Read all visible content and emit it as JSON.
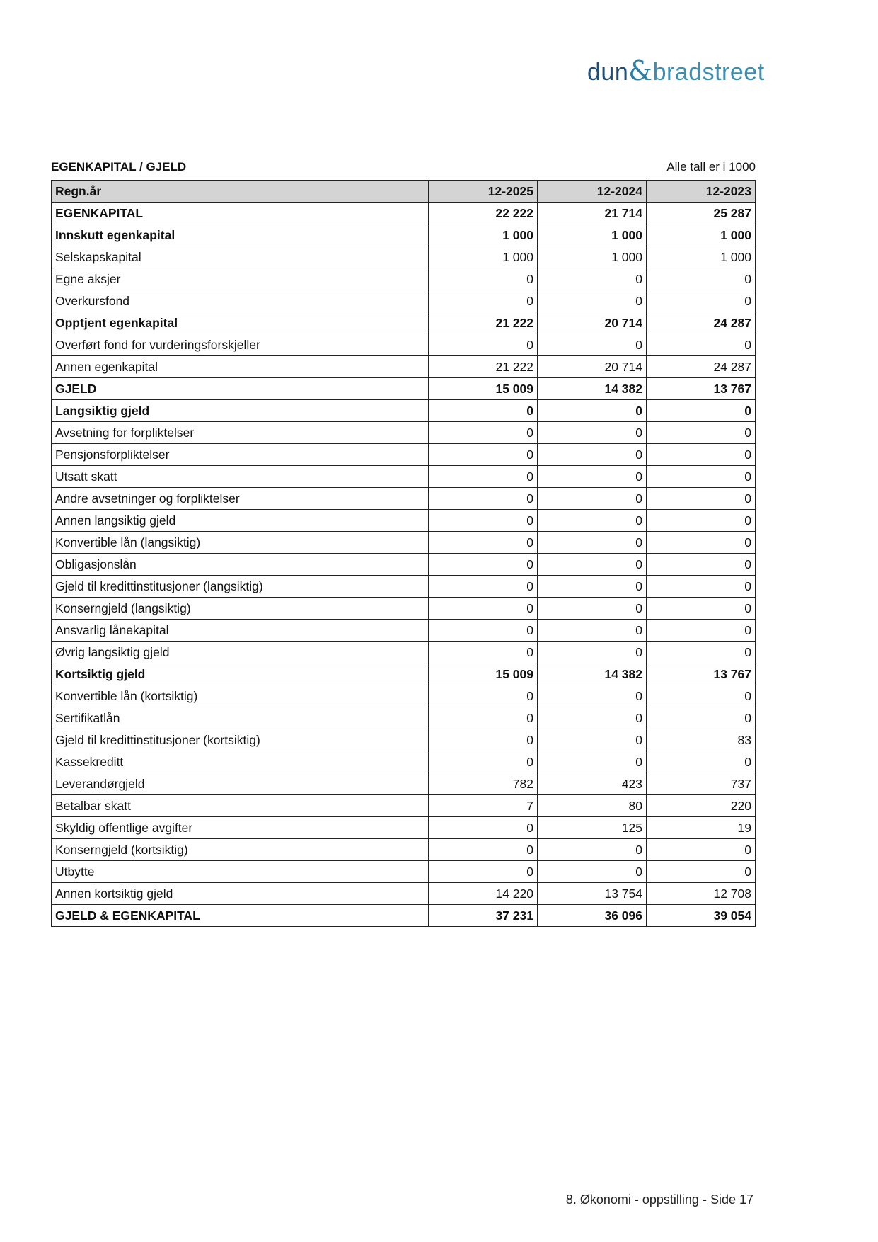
{
  "logo": {
    "left": "dun",
    "amp": "&",
    "right": "bradstreet"
  },
  "section_title": "EGENKAPITAL / GJELD",
  "unit_note": "Alle tall er i 1000",
  "table": {
    "headers": [
      "Regn.år",
      "12-2025",
      "12-2024",
      "12-2023"
    ],
    "rows": [
      {
        "label": "EGENKAPITAL",
        "bold": true,
        "values": [
          "22 222",
          "21 714",
          "25 287"
        ]
      },
      {
        "label": "Innskutt egenkapital",
        "bold": true,
        "values": [
          "1 000",
          "1 000",
          "1 000"
        ]
      },
      {
        "label": "Selskapskapital",
        "bold": false,
        "values": [
          "1 000",
          "1 000",
          "1 000"
        ]
      },
      {
        "label": "Egne aksjer",
        "bold": false,
        "values": [
          "0",
          "0",
          "0"
        ]
      },
      {
        "label": "Overkursfond",
        "bold": false,
        "values": [
          "0",
          "0",
          "0"
        ]
      },
      {
        "label": "Opptjent egenkapital",
        "bold": true,
        "values": [
          "21 222",
          "20 714",
          "24 287"
        ]
      },
      {
        "label": "Overført fond for vurderingsforskjeller",
        "bold": false,
        "values": [
          "0",
          "0",
          "0"
        ]
      },
      {
        "label": "Annen egenkapital",
        "bold": false,
        "values": [
          "21 222",
          "20 714",
          "24 287"
        ]
      },
      {
        "label": "GJELD",
        "bold": true,
        "values": [
          "15 009",
          "14 382",
          "13 767"
        ]
      },
      {
        "label": "Langsiktig gjeld",
        "bold": true,
        "values": [
          "0",
          "0",
          "0"
        ]
      },
      {
        "label": "Avsetning for forpliktelser",
        "bold": false,
        "values": [
          "0",
          "0",
          "0"
        ]
      },
      {
        "label": "Pensjonsforpliktelser",
        "bold": false,
        "values": [
          "0",
          "0",
          "0"
        ]
      },
      {
        "label": "Utsatt skatt",
        "bold": false,
        "values": [
          "0",
          "0",
          "0"
        ]
      },
      {
        "label": "Andre avsetninger og forpliktelser",
        "bold": false,
        "values": [
          "0",
          "0",
          "0"
        ]
      },
      {
        "label": "Annen langsiktig gjeld",
        "bold": false,
        "values": [
          "0",
          "0",
          "0"
        ]
      },
      {
        "label": "Konvertible lån (langsiktig)",
        "bold": false,
        "values": [
          "0",
          "0",
          "0"
        ]
      },
      {
        "label": "Obligasjonslån",
        "bold": false,
        "values": [
          "0",
          "0",
          "0"
        ]
      },
      {
        "label": "Gjeld til kredittinstitusjoner (langsiktig)",
        "bold": false,
        "values": [
          "0",
          "0",
          "0"
        ]
      },
      {
        "label": "Konserngjeld (langsiktig)",
        "bold": false,
        "values": [
          "0",
          "0",
          "0"
        ]
      },
      {
        "label": "Ansvarlig lånekapital",
        "bold": false,
        "values": [
          "0",
          "0",
          "0"
        ]
      },
      {
        "label": "Øvrig langsiktig gjeld",
        "bold": false,
        "values": [
          "0",
          "0",
          "0"
        ]
      },
      {
        "label": "Kortsiktig gjeld",
        "bold": true,
        "values": [
          "15 009",
          "14 382",
          "13 767"
        ]
      },
      {
        "label": "Konvertible lån (kortsiktig)",
        "bold": false,
        "values": [
          "0",
          "0",
          "0"
        ]
      },
      {
        "label": "Sertifikatlån",
        "bold": false,
        "values": [
          "0",
          "0",
          "0"
        ]
      },
      {
        "label": "Gjeld til kredittinstitusjoner (kortsiktig)",
        "bold": false,
        "values": [
          "0",
          "0",
          "83"
        ]
      },
      {
        "label": "Kassekreditt",
        "bold": false,
        "values": [
          "0",
          "0",
          "0"
        ]
      },
      {
        "label": "Leverandørgjeld",
        "bold": false,
        "values": [
          "782",
          "423",
          "737"
        ]
      },
      {
        "label": "Betalbar skatt",
        "bold": false,
        "values": [
          "7",
          "80",
          "220"
        ]
      },
      {
        "label": "Skyldig offentlige avgifter",
        "bold": false,
        "values": [
          "0",
          "125",
          "19"
        ]
      },
      {
        "label": "Konserngjeld (kortsiktig)",
        "bold": false,
        "values": [
          "0",
          "0",
          "0"
        ]
      },
      {
        "label": "Utbytte",
        "bold": false,
        "values": [
          "0",
          "0",
          "0"
        ]
      },
      {
        "label": "Annen kortsiktig gjeld",
        "bold": false,
        "values": [
          "14 220",
          "13 754",
          "12 708"
        ]
      },
      {
        "label": "GJELD & EGENKAPITAL",
        "bold": true,
        "values": [
          "37 231",
          "36 096",
          "39 054"
        ]
      }
    ]
  },
  "footer": "8. Økonomi - oppstilling - Side 17"
}
